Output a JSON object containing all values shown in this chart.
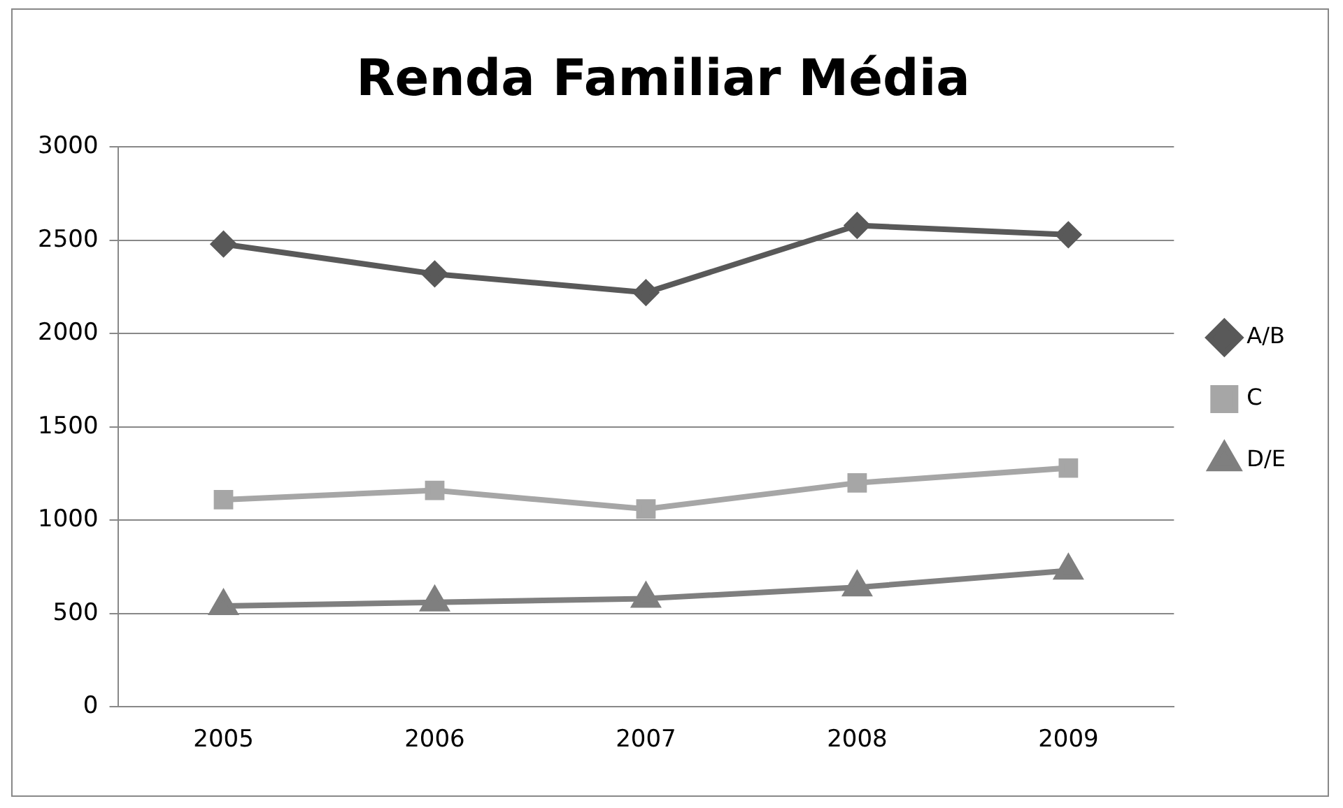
{
  "chart_data": {
    "type": "line",
    "title": "Renda Familiar Média",
    "categories": [
      "2005",
      "2006",
      "2007",
      "2008",
      "2009"
    ],
    "series": [
      {
        "name": "A/B",
        "color": "#595959",
        "marker": "diamond",
        "values": [
          2480,
          2320,
          2220,
          2580,
          2530
        ]
      },
      {
        "name": "C",
        "color": "#a6a6a6",
        "marker": "square",
        "values": [
          1110,
          1160,
          1060,
          1200,
          1280
        ]
      },
      {
        "name": "D/E",
        "color": "#7f7f7f",
        "marker": "triangle",
        "values": [
          540,
          560,
          580,
          640,
          730
        ]
      }
    ],
    "ylim": [
      0,
      3000
    ],
    "yticks": [
      0,
      500,
      1000,
      1500,
      2000,
      2500,
      3000
    ],
    "grid": "y",
    "legend": "right",
    "line_style": "solid"
  }
}
